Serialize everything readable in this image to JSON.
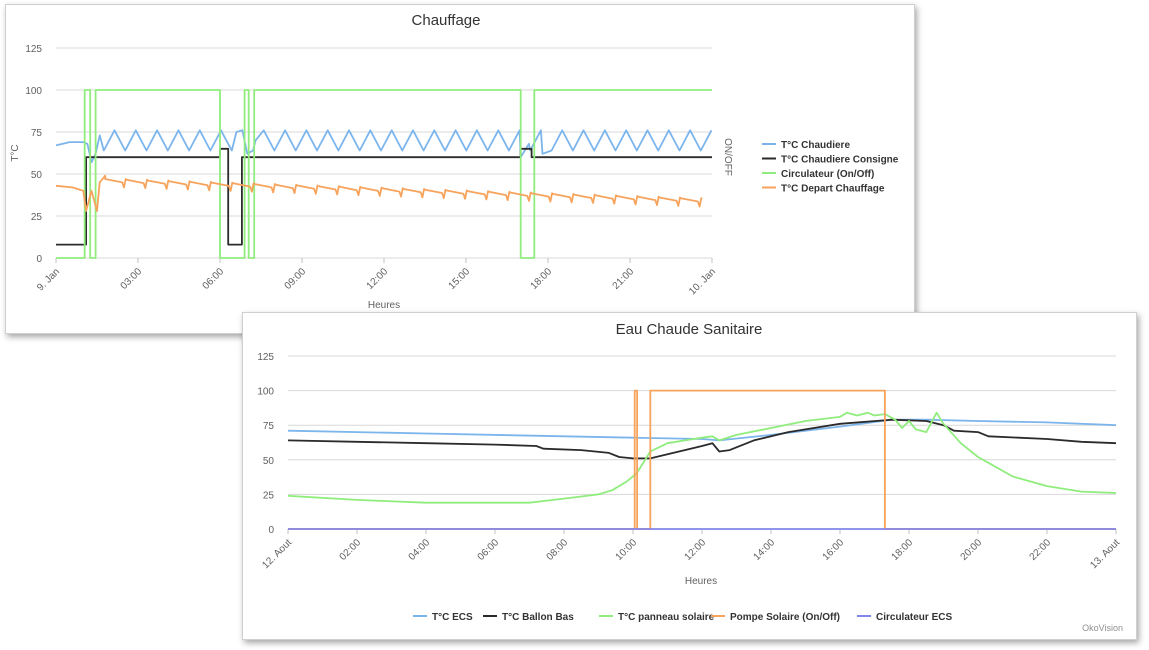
{
  "colors": {
    "blue": "#7cb5ec",
    "black": "#2b2b2b",
    "green": "#90ed7d",
    "orange": "#f7a35c",
    "purple": "#8085e9",
    "grid": "#d8d8d8",
    "panel_bg": "#ffffff"
  },
  "credit": "OkoVision",
  "chart_data": [
    {
      "type": "line",
      "title": "Chauffage",
      "xlabel": "Heures",
      "ylabel": "T°C",
      "y2label": "ON/OFF",
      "xlim": [
        0,
        24
      ],
      "ylim": [
        0,
        125
      ],
      "yticks": [
        0,
        25,
        50,
        75,
        100,
        125
      ],
      "xticks": [
        {
          "x": 0,
          "label": "9. Jan"
        },
        {
          "x": 3,
          "label": "03:00"
        },
        {
          "x": 6,
          "label": "06:00"
        },
        {
          "x": 9,
          "label": "09:00"
        },
        {
          "x": 12,
          "label": "12:00"
        },
        {
          "x": 15,
          "label": "15:00"
        },
        {
          "x": 18,
          "label": "18:00"
        },
        {
          "x": 21,
          "label": "21:00"
        },
        {
          "x": 24,
          "label": "10. Jan"
        }
      ],
      "grid": true,
      "legend_position": "right",
      "series": [
        {
          "name": "T°C Chaudiere",
          "color_key": "blue",
          "oscillating": {
            "start": [
              [
                0,
                67
              ],
              [
                0.5,
                69
              ],
              [
                1.0,
                69
              ],
              [
                1.15,
                68
              ],
              [
                1.3,
                57
              ],
              [
                1.45,
                62
              ],
              [
                1.6,
                73
              ],
              [
                1.75,
                64
              ]
            ],
            "range": [
              1.75,
              24
            ],
            "period": 0.78,
            "low": 64,
            "high": 76,
            "overrides": [
              [
                6.1,
                74
              ],
              [
                6.6,
                75
              ],
              [
                7.0,
                62
              ],
              [
                7.3,
                70
              ],
              [
                17.0,
                60
              ],
              [
                17.3,
                68
              ],
              [
                17.8,
                62
              ]
            ]
          }
        },
        {
          "name": "T°C Chaudiere Consigne",
          "color_key": "black",
          "points": [
            [
              0,
              8
            ],
            [
              1.1,
              8
            ],
            [
              1.1,
              60
            ],
            [
              6.0,
              60
            ],
            [
              6.0,
              65
            ],
            [
              6.3,
              65
            ],
            [
              6.3,
              8
            ],
            [
              6.8,
              8
            ],
            [
              6.8,
              60
            ],
            [
              17.0,
              60
            ],
            [
              17.0,
              65
            ],
            [
              17.4,
              65
            ],
            [
              17.4,
              60
            ],
            [
              24,
              60
            ]
          ]
        },
        {
          "name": "Circulateur (On/Off)",
          "color_key": "green",
          "points": [
            [
              0,
              0
            ],
            [
              1.05,
              0
            ],
            [
              1.05,
              100
            ],
            [
              1.25,
              100
            ],
            [
              1.25,
              0
            ],
            [
              1.45,
              0
            ],
            [
              1.45,
              100
            ],
            [
              6.0,
              100
            ],
            [
              6.0,
              0
            ],
            [
              6.9,
              0
            ],
            [
              6.9,
              100
            ],
            [
              7.05,
              100
            ],
            [
              7.05,
              0
            ],
            [
              7.25,
              0
            ],
            [
              7.25,
              100
            ],
            [
              17.0,
              100
            ],
            [
              17.0,
              0
            ],
            [
              17.5,
              0
            ],
            [
              17.5,
              100
            ],
            [
              24,
              100
            ]
          ]
        },
        {
          "name": "T°C Depart Chauffage",
          "color_key": "orange",
          "sawtooth": {
            "start": [
              [
                0,
                43
              ],
              [
                0.6,
                42
              ],
              [
                1.0,
                40
              ],
              [
                1.1,
                28
              ],
              [
                1.3,
                40
              ],
              [
                1.5,
                28
              ],
              [
                1.6,
                45
              ],
              [
                1.8,
                49
              ]
            ],
            "range": [
              1.8,
              24
            ],
            "period": 0.78,
            "from": 46,
            "to": 34,
            "dip": 4
          }
        }
      ]
    },
    {
      "type": "line",
      "title": "Eau Chaude Sanitaire",
      "xlabel": "Heures",
      "ylabel": "",
      "xlim": [
        0,
        24
      ],
      "ylim": [
        0,
        125
      ],
      "yticks": [
        0,
        25,
        50,
        75,
        100,
        125
      ],
      "xticks": [
        {
          "x": 0,
          "label": "12. Aout"
        },
        {
          "x": 2,
          "label": "02:00"
        },
        {
          "x": 4,
          "label": "04:00"
        },
        {
          "x": 6,
          "label": "06:00"
        },
        {
          "x": 8,
          "label": "08:00"
        },
        {
          "x": 10,
          "label": "10:00"
        },
        {
          "x": 12,
          "label": "12:00"
        },
        {
          "x": 14,
          "label": "14:00"
        },
        {
          "x": 16,
          "label": "16:00"
        },
        {
          "x": 18,
          "label": "18:00"
        },
        {
          "x": 20,
          "label": "20:00"
        },
        {
          "x": 22,
          "label": "22:00"
        },
        {
          "x": 24,
          "label": "13. Aout"
        }
      ],
      "grid": true,
      "legend_position": "bottom",
      "series": [
        {
          "name": "T°C ECS",
          "color_key": "blue",
          "points": [
            [
              0,
              71
            ],
            [
              4,
              69
            ],
            [
              8,
              67
            ],
            [
              10,
              66
            ],
            [
              12,
              65
            ],
            [
              12.5,
              64
            ],
            [
              14,
              68
            ],
            [
              16,
              74
            ],
            [
              17.5,
              79
            ],
            [
              18.5,
              79
            ],
            [
              20,
              78
            ],
            [
              22,
              77
            ],
            [
              24,
              75
            ]
          ]
        },
        {
          "name": "T°C Ballon Bas",
          "color_key": "black",
          "points": [
            [
              0,
              64
            ],
            [
              2,
              63
            ],
            [
              4,
              62
            ],
            [
              6,
              61
            ],
            [
              7.2,
              60
            ],
            [
              7.4,
              58
            ],
            [
              8.5,
              57
            ],
            [
              9.3,
              55
            ],
            [
              9.6,
              52
            ],
            [
              10.0,
              51
            ],
            [
              10.5,
              51
            ],
            [
              11.0,
              54
            ],
            [
              11.5,
              57
            ],
            [
              12.0,
              60
            ],
            [
              12.3,
              62
            ],
            [
              12.5,
              56
            ],
            [
              12.8,
              57
            ],
            [
              13.5,
              64
            ],
            [
              14.5,
              70
            ],
            [
              16,
              76
            ],
            [
              17.5,
              79
            ],
            [
              18.5,
              78
            ],
            [
              19.0,
              75
            ],
            [
              19.3,
              71
            ],
            [
              20,
              70
            ],
            [
              20.3,
              67
            ],
            [
              22,
              65
            ],
            [
              23,
              63
            ],
            [
              24,
              62
            ]
          ]
        },
        {
          "name": "T°C panneau solaire",
          "color_key": "green",
          "points": [
            [
              0,
              24
            ],
            [
              2,
              21
            ],
            [
              4,
              19
            ],
            [
              6,
              19
            ],
            [
              7,
              19
            ],
            [
              8,
              22
            ],
            [
              9,
              25
            ],
            [
              9.4,
              28
            ],
            [
              9.8,
              34
            ],
            [
              10.1,
              40
            ],
            [
              10.3,
              48
            ],
            [
              10.5,
              56
            ],
            [
              11,
              62
            ],
            [
              11.5,
              64
            ],
            [
              12,
              66
            ],
            [
              12.3,
              67
            ],
            [
              12.5,
              64
            ],
            [
              13,
              68
            ],
            [
              14,
              73
            ],
            [
              15,
              78
            ],
            [
              16,
              81
            ],
            [
              16.2,
              84
            ],
            [
              16.5,
              82
            ],
            [
              16.8,
              84
            ],
            [
              17.0,
              82
            ],
            [
              17.3,
              83
            ],
            [
              17.6,
              79
            ],
            [
              17.8,
              73
            ],
            [
              18.0,
              78
            ],
            [
              18.2,
              72
            ],
            [
              18.5,
              70
            ],
            [
              18.8,
              84
            ],
            [
              19.0,
              76
            ],
            [
              19.5,
              62
            ],
            [
              20,
              52
            ],
            [
              20.5,
              45
            ],
            [
              21,
              38
            ],
            [
              22,
              31
            ],
            [
              23,
              27
            ],
            [
              24,
              26
            ]
          ]
        },
        {
          "name": "Pompe Solaire (On/Off)",
          "color_key": "orange",
          "points": [
            [
              0,
              0
            ],
            [
              10.05,
              0
            ],
            [
              10.05,
              100
            ],
            [
              10.12,
              100
            ],
            [
              10.12,
              0
            ],
            [
              10.5,
              0
            ],
            [
              10.5,
              100
            ],
            [
              17.3,
              100
            ],
            [
              17.3,
              0
            ],
            [
              24,
              0
            ]
          ]
        },
        {
          "name": "Circulateur ECS",
          "color_key": "purple",
          "points": [
            [
              0,
              0
            ],
            [
              24,
              0
            ]
          ]
        }
      ]
    }
  ]
}
